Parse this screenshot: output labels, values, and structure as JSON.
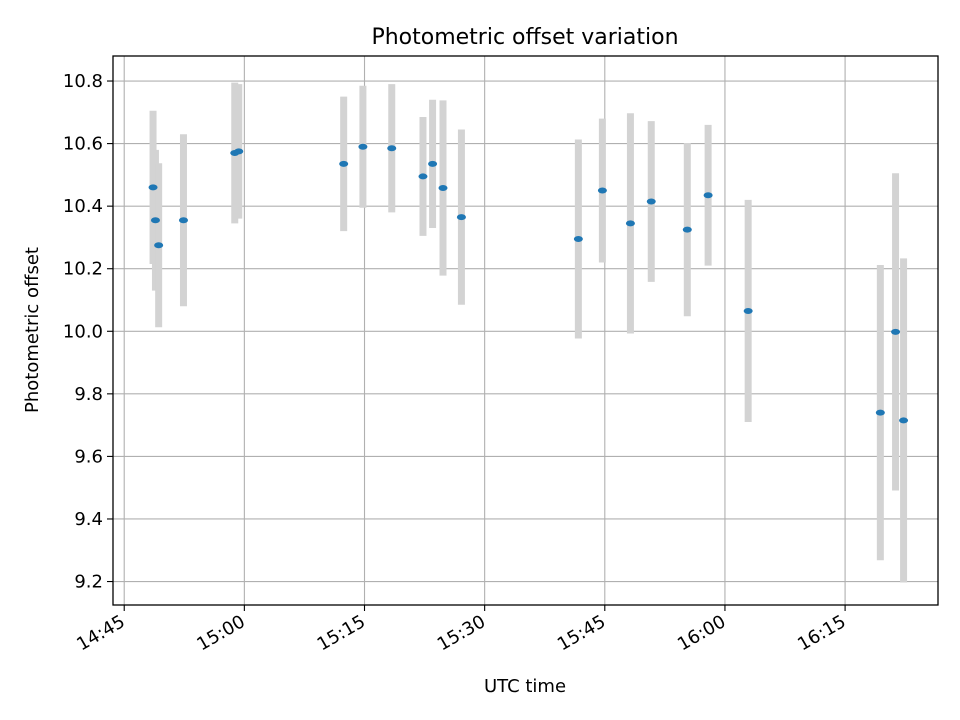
{
  "chart_data": {
    "type": "scatter",
    "title": "Photometric offset variation",
    "xlabel": "UTC time",
    "ylabel": "Photometric offset",
    "x_ticks": [
      "14:45",
      "15:00",
      "15:15",
      "15:30",
      "15:45",
      "16:00",
      "16:15"
    ],
    "y_ticks": [
      "9.2",
      "9.4",
      "9.6",
      "9.8",
      "10.0",
      "10.2",
      "10.4",
      "10.6",
      "10.8"
    ],
    "xlim": [
      "14:43:36",
      "16:26:36"
    ],
    "ylim": [
      9.125,
      10.88
    ],
    "grid": true,
    "point_color": "#1f77b4",
    "errorbar_color": "#d3d3d3",
    "points": [
      {
        "x": "14:48:36",
        "y": 10.46,
        "err": 0.245
      },
      {
        "x": "14:48:54",
        "y": 10.355,
        "err": 0.225
      },
      {
        "x": "14:49:18",
        "y": 10.275,
        "err": 0.262
      },
      {
        "x": "14:52:24",
        "y": 10.355,
        "err": 0.275
      },
      {
        "x": "14:58:48",
        "y": 10.57,
        "err": 0.225
      },
      {
        "x": "14:59:18",
        "y": 10.575,
        "err": 0.215
      },
      {
        "x": "15:12:24",
        "y": 10.535,
        "err": 0.215
      },
      {
        "x": "15:14:48",
        "y": 10.59,
        "err": 0.195
      },
      {
        "x": "15:18:24",
        "y": 10.585,
        "err": 0.205
      },
      {
        "x": "15:22:18",
        "y": 10.495,
        "err": 0.19
      },
      {
        "x": "15:23:30",
        "y": 10.535,
        "err": 0.205
      },
      {
        "x": "15:24:48",
        "y": 10.458,
        "err": 0.28
      },
      {
        "x": "15:27:06",
        "y": 10.365,
        "err": 0.28
      },
      {
        "x": "15:41:42",
        "y": 10.295,
        "err": 0.318
      },
      {
        "x": "15:44:42",
        "y": 10.45,
        "err": 0.23
      },
      {
        "x": "15:48:12",
        "y": 10.345,
        "err": 0.352
      },
      {
        "x": "15:50:48",
        "y": 10.415,
        "err": 0.257
      },
      {
        "x": "15:55:18",
        "y": 10.325,
        "err": 0.277
      },
      {
        "x": "15:57:54",
        "y": 10.435,
        "err": 0.225
      },
      {
        "x": "16:02:54",
        "y": 10.065,
        "err": 0.355
      },
      {
        "x": "16:19:24",
        "y": 9.74,
        "err": 0.472
      },
      {
        "x": "16:21:18",
        "y": 9.998,
        "err": 0.507
      },
      {
        "x": "16:22:18",
        "y": 9.715,
        "err": 0.518
      }
    ]
  }
}
